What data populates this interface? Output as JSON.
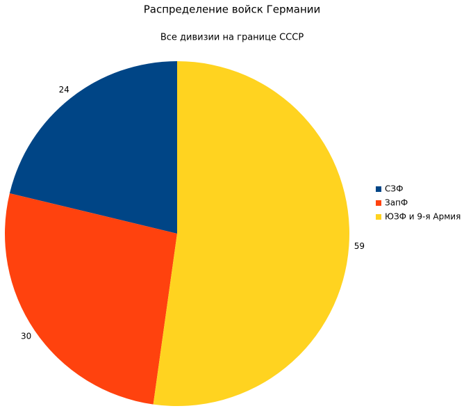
{
  "chart_data": {
    "type": "pie",
    "title": "Распределение войск Германии",
    "subtitle": "Все дивизии на границе СССР",
    "categories": [
      "СЗФ",
      "ЗапФ",
      "ЮЗФ и 9-я Армия"
    ],
    "values": [
      24,
      30,
      59
    ],
    "colors": [
      "#004586",
      "#ff420e",
      "#ffd320"
    ],
    "legend": "right"
  }
}
